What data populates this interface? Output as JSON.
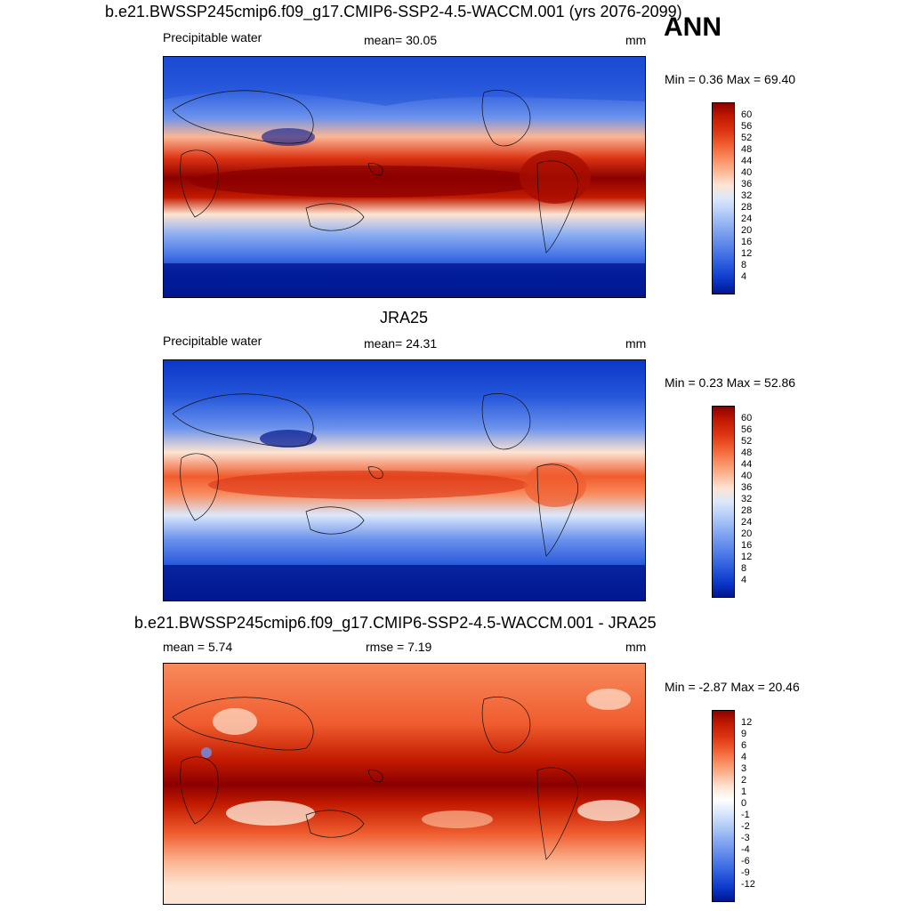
{
  "season": "ANN",
  "panels": [
    {
      "title": "b.e21.BWSSP245cmip6.f09_g17.CMIP6-SSP2-4.5-WACCM.001 (yrs 2076-2099)",
      "left": "Precipitable water",
      "center": "mean=  30.05",
      "units": "mm",
      "minmax": "Min =   0.36 Max =  69.40",
      "colorbar": [
        "60",
        "56",
        "52",
        "48",
        "44",
        "40",
        "36",
        "32",
        "28",
        "24",
        "20",
        "16",
        "12",
        "8",
        "4"
      ]
    },
    {
      "title": "JRA25",
      "left": "Precipitable water",
      "center": "mean=  24.31",
      "units": "mm",
      "minmax": "Min =   0.23 Max =  52.86",
      "colorbar": [
        "60",
        "56",
        "52",
        "48",
        "44",
        "40",
        "36",
        "32",
        "28",
        "24",
        "20",
        "16",
        "12",
        "8",
        "4"
      ]
    },
    {
      "title": "b.e21.BWSSP245cmip6.f09_g17.CMIP6-SSP2-4.5-WACCM.001 - JRA25",
      "left": "mean =    5.74",
      "center": "rmse =    7.19",
      "units": "mm",
      "minmax": "Min =  -2.87 Max =  20.46",
      "colorbar": [
        "12",
        "9",
        "6",
        "4",
        "3",
        "2",
        "1",
        "0",
        "-1",
        "-2",
        "-3",
        "-4",
        "-6",
        "-9",
        "-12"
      ]
    }
  ],
  "colors": {
    "ramp": [
      "#8b0000",
      "#a80c00",
      "#c21a00",
      "#db3312",
      "#ef5c2e",
      "#f88a5c",
      "#fbb694",
      "#fde4d2",
      "#dbe8fb",
      "#b6cef7",
      "#8fb0f2",
      "#6b92ec",
      "#4876e6",
      "#2657db",
      "#0b37c7",
      "#00168f"
    ]
  }
}
